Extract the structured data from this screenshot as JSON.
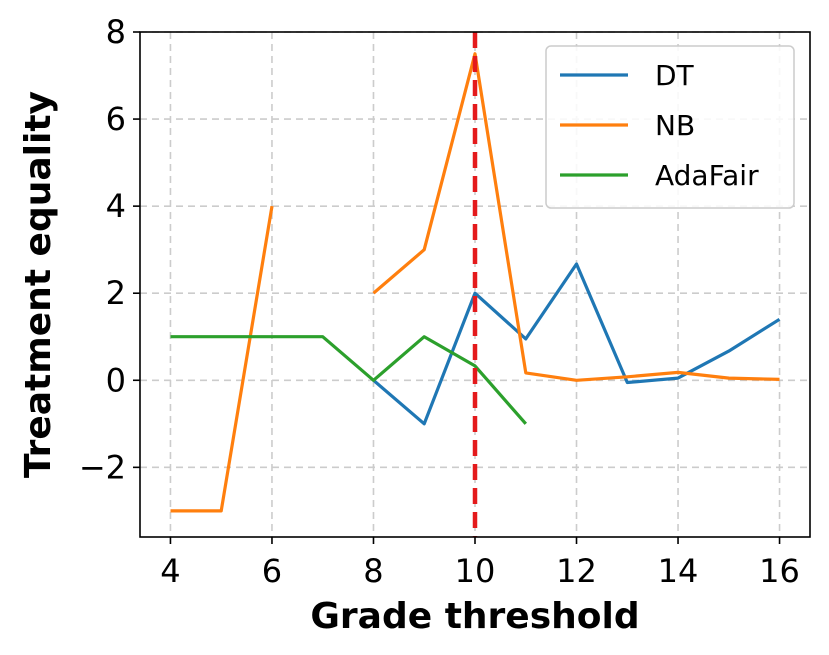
{
  "chart_data": {
    "type": "line",
    "title": "",
    "xlabel": "Grade threshold",
    "ylabel": "Treatment equality",
    "xlim": [
      3.4,
      16.6
    ],
    "ylim": [
      -3.6,
      8.0
    ],
    "xticks": [
      4,
      6,
      8,
      10,
      12,
      14,
      16
    ],
    "yticks": [
      -2,
      0,
      2,
      4,
      6,
      8
    ],
    "ytick_labels": [
      "−2",
      "0",
      "2",
      "4",
      "6",
      "8"
    ],
    "grid": true,
    "legend_position": "top-right",
    "vline": {
      "x": 10,
      "color": "#e41a1c",
      "style": "dashed"
    },
    "series": [
      {
        "name": "DT",
        "color": "#1f77b4",
        "points": [
          [
            8,
            0.0
          ],
          [
            9,
            -1.0
          ],
          [
            10,
            2.0
          ],
          [
            11,
            0.95
          ],
          [
            12,
            2.67
          ],
          [
            13,
            -0.05
          ],
          [
            14,
            0.05
          ],
          [
            15,
            0.67
          ],
          [
            16,
            1.4
          ]
        ]
      },
      {
        "name": "NB",
        "color": "#ff7f0e",
        "segments": [
          [
            [
              4,
              -3.0
            ],
            [
              5,
              -3.0
            ],
            [
              6,
              4.0
            ]
          ],
          [
            [
              8,
              2.0
            ],
            [
              9,
              3.0
            ],
            [
              10,
              7.5
            ],
            [
              11,
              0.17
            ],
            [
              12,
              0.0
            ],
            [
              13,
              0.08
            ],
            [
              14,
              0.18
            ],
            [
              15,
              0.05
            ],
            [
              16,
              0.02
            ]
          ]
        ]
      },
      {
        "name": "AdaFair",
        "color": "#2ca02c",
        "points": [
          [
            4,
            1.0
          ],
          [
            5,
            1.0
          ],
          [
            6,
            1.0
          ],
          [
            7,
            1.0
          ],
          [
            8,
            0.0
          ],
          [
            9,
            1.0
          ],
          [
            10,
            0.33
          ],
          [
            11,
            -1.0
          ]
        ]
      }
    ]
  }
}
